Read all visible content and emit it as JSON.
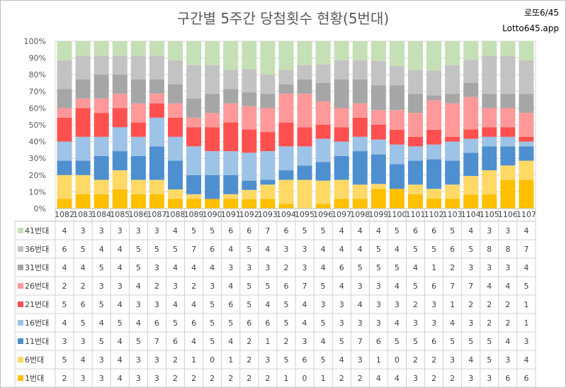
{
  "title": "구간별 5주간 당첨횟수 현황(5번대)",
  "brand": {
    "line1": "로또6/45",
    "line2": "Lotto645.app"
  },
  "chart_data": {
    "type": "bar",
    "stacked": "percent",
    "title": "구간별 5주간 당첨횟수 현황(5번대)",
    "y_ticks": [
      "0%",
      "10%",
      "20%",
      "30%",
      "40%",
      "50%",
      "60%",
      "70%",
      "80%",
      "90%",
      "100%"
    ],
    "ylim": [
      0,
      100
    ],
    "grid": true,
    "legend": "table-below",
    "categories": [
      "1082",
      "1083",
      "1084",
      "1085",
      "1086",
      "1087",
      "1088",
      "1089",
      "1090",
      "1091",
      "1092",
      "1093",
      "1094",
      "1095",
      "1096",
      "1097",
      "1098",
      "1099",
      "1100",
      "1101",
      "1102",
      "1103",
      "1104",
      "1105",
      "1106",
      "1107"
    ],
    "series": [
      {
        "name": "1번대",
        "color": "#ffc000",
        "values": [
          2,
          3,
          3,
          4,
          3,
          3,
          2,
          2,
          2,
          2,
          2,
          2,
          1,
          0,
          1,
          2,
          2,
          4,
          4,
          3,
          2,
          2,
          3,
          3,
          6,
          6
        ]
      },
      {
        "name": "6번대",
        "color": "#ffd966",
        "values": [
          5,
          4,
          3,
          4,
          3,
          3,
          2,
          1,
          0,
          1,
          2,
          3,
          5,
          6,
          5,
          4,
          3,
          1,
          0,
          2,
          2,
          3,
          4,
          5,
          3,
          4
        ]
      },
      {
        "name": "11번대",
        "color": "#4e8fd0",
        "values": [
          3,
          3,
          5,
          4,
          5,
          7,
          6,
          4,
          5,
          4,
          2,
          1,
          2,
          3,
          4,
          5,
          7,
          6,
          5,
          5,
          6,
          5,
          5,
          5,
          4,
          3
        ]
      },
      {
        "name": "16번대",
        "color": "#9dc3e6",
        "values": [
          4,
          5,
          4,
          5,
          4,
          6,
          5,
          6,
          5,
          5,
          6,
          6,
          5,
          4,
          5,
          3,
          3,
          3,
          4,
          3,
          3,
          4,
          3,
          2,
          2,
          1
        ]
      },
      {
        "name": "21번대",
        "color": "#ff5050",
        "values": [
          5,
          6,
          5,
          4,
          3,
          3,
          4,
          4,
          5,
          6,
          5,
          4,
          5,
          4,
          3,
          3,
          4,
          3,
          3,
          2,
          3,
          1,
          2,
          2,
          2,
          1
        ]
      },
      {
        "name": "26번대",
        "color": "#ff9999",
        "values": [
          2,
          2,
          3,
          3,
          4,
          2,
          3,
          2,
          3,
          4,
          5,
          5,
          6,
          7,
          5,
          4,
          3,
          3,
          4,
          5,
          6,
          7,
          7,
          4,
          4,
          5
        ]
      },
      {
        "name": "31번대",
        "color": "#a6a6a6",
        "values": [
          4,
          4,
          5,
          4,
          5,
          3,
          4,
          4,
          4,
          3,
          3,
          3,
          2,
          3,
          4,
          6,
          5,
          5,
          5,
          4,
          1,
          2,
          3,
          3,
          3,
          4
        ]
      },
      {
        "name": "36번대",
        "color": "#c3c3c3",
        "values": [
          6,
          5,
          4,
          4,
          5,
          5,
          5,
          7,
          6,
          4,
          5,
          4,
          3,
          3,
          4,
          4,
          4,
          5,
          4,
          5,
          5,
          6,
          5,
          8,
          8,
          7
        ]
      },
      {
        "name": "41번대",
        "color": "#c5e0b4",
        "values": [
          4,
          3,
          3,
          3,
          3,
          3,
          4,
          5,
          5,
          6,
          6,
          7,
          6,
          5,
          5,
          4,
          4,
          4,
          5,
          6,
          6,
          5,
          4,
          3,
          3,
          4
        ]
      }
    ]
  }
}
